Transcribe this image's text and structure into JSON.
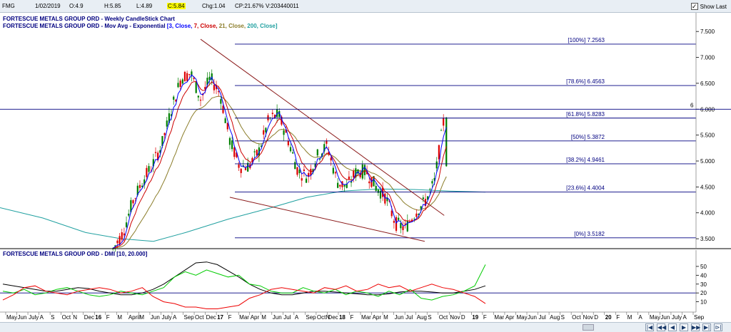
{
  "topbar": {
    "symbol": "FMG",
    "date": "1/02/2019",
    "open": "O:4.9",
    "high": "H:5.85",
    "low": "L:4.89",
    "close": "C:5.84",
    "change": "Chg:1.04",
    "change_pct": "CP:21.67%",
    "volume": "V:203440011",
    "show_last_label": "Show Last",
    "show_last_checked": true
  },
  "colors": {
    "fib_line": "#000080",
    "trend_line": "#8b1a1a",
    "ema3": "#0000ff",
    "ema7": "#cc0000",
    "ema21": "#8b7d2a",
    "ema200": "#20a0a0",
    "candle_up": "#008000",
    "candle_down": "#dd0000",
    "dmi_adx": "#000000",
    "dmi_plus": "#00cc00",
    "dmi_minus": "#ee0000",
    "dmi_threshold": "#000080"
  },
  "chart_data": [
    {
      "type": "line",
      "title": "FORTESCUE METALS GROUP ORD - Weekly CandleStick Chart",
      "subtitle_prefix": "FORTESCUE METALS GROUP ORD - Mov Avg - Exponential",
      "subtitle_parts": [
        {
          "text": "[3, Close, ",
          "color": "#0000ff"
        },
        {
          "text": "7, Close, ",
          "color": "#cc0000"
        },
        {
          "text": "21, Close, ",
          "color": "#8b7d2a"
        },
        {
          "text": "200, Close]",
          "color": "#20a0a0"
        }
      ],
      "y_ticks": [
        "7.500",
        "7.000",
        "6.500",
        "6.000",
        "5.500",
        "5.000",
        "4.500",
        "4.000",
        "3.500"
      ],
      "ylim": [
        3.35,
        7.75
      ],
      "current_price_marker": "6",
      "price_path": [
        [
          "2016-04",
          3.3
        ],
        [
          "2016-05",
          3.6
        ],
        [
          "2016-06",
          4.2
        ],
        [
          "2016-07",
          4.6
        ],
        [
          "2016-08",
          4.9
        ],
        [
          "2016-09",
          5.3
        ],
        [
          "2016-10",
          6.0
        ],
        [
          "2016-11",
          6.6
        ],
        [
          "2016-12",
          6.7
        ],
        [
          "2017-01",
          6.2
        ],
        [
          "2017-02",
          6.6
        ],
        [
          "2017-03",
          6.3
        ],
        [
          "2017-04",
          5.4
        ],
        [
          "2017-05",
          4.9
        ],
        [
          "2017-06",
          4.9
        ],
        [
          "2017-07",
          5.2
        ],
        [
          "2017-08",
          5.8
        ],
        [
          "2017-09",
          5.9
        ],
        [
          "2017-10",
          5.4
        ],
        [
          "2017-11",
          4.8
        ],
        [
          "2017-12",
          4.7
        ],
        [
          "2018-01",
          5.1
        ],
        [
          "2018-02",
          5.3
        ],
        [
          "2018-03",
          4.6
        ],
        [
          "2018-04",
          4.5
        ],
        [
          "2018-05",
          4.8
        ],
        [
          "2018-06",
          4.8
        ],
        [
          "2018-07",
          4.5
        ],
        [
          "2018-08",
          4.3
        ],
        [
          "2018-09",
          3.8
        ],
        [
          "2018-10",
          3.7
        ],
        [
          "2018-11",
          4.0
        ],
        [
          "2018-12",
          4.2
        ],
        [
          "2019-01",
          4.6
        ],
        [
          "2019-02",
          5.84
        ]
      ],
      "fib_levels": [
        {
          "label": "[100%] 7.2563",
          "value": 7.2563
        },
        {
          "label": "[78.6%] 6.4563",
          "value": 6.4563
        },
        {
          "label": "[61.8%] 5.8283",
          "value": 5.8283
        },
        {
          "label": "[50%] 5.3872",
          "value": 5.3872
        },
        {
          "label": "[38.2%] 4.9461",
          "value": 4.9461
        },
        {
          "label": "[23.6%] 4.4004",
          "value": 4.4004
        },
        {
          "label": "[0%] 3.5182",
          "value": 3.5182
        }
      ],
      "horizontal_line": 6.0,
      "trend_lines": [
        {
          "from": [
            "2017-01",
            7.35
          ],
          "to": [
            "2019-02",
            3.95
          ]
        },
        {
          "from": [
            "2017-04",
            4.3
          ],
          "to": [
            "2018-12",
            3.45
          ]
        }
      ]
    },
    {
      "type": "line",
      "title": "FORTESCUE METALS GROUP ORD - DMI [10, 20.000]",
      "y_ticks": [
        "50",
        "40",
        "30",
        "20",
        "10"
      ],
      "ylim": [
        0,
        58
      ],
      "threshold": 20,
      "adx_path": [
        30,
        28,
        26,
        24,
        22,
        22,
        24,
        26,
        25,
        22,
        20,
        18,
        18,
        20,
        24,
        30,
        38,
        46,
        54,
        55,
        52,
        45,
        38,
        30,
        24,
        20,
        18,
        18,
        20,
        22,
        22,
        21,
        20,
        19,
        18,
        18,
        19,
        21,
        22,
        22,
        21,
        20,
        20,
        22,
        24,
        28
      ],
      "di_plus_path": [
        22,
        20,
        24,
        18,
        20,
        24,
        26,
        22,
        18,
        16,
        18,
        22,
        20,
        18,
        22,
        26,
        38,
        44,
        40,
        46,
        42,
        38,
        40,
        30,
        28,
        22,
        20,
        20,
        26,
        22,
        20,
        24,
        18,
        22,
        20,
        16,
        22,
        18,
        24,
        14,
        12,
        16,
        18,
        22,
        28,
        52
      ],
      "di_minus_path": [
        12,
        18,
        26,
        28,
        22,
        20,
        18,
        22,
        24,
        26,
        24,
        20,
        22,
        26,
        16,
        10,
        8,
        4,
        4,
        2,
        2,
        4,
        6,
        14,
        18,
        24,
        26,
        24,
        22,
        20,
        26,
        24,
        28,
        22,
        24,
        30,
        26,
        28,
        22,
        26,
        30,
        26,
        24,
        20,
        16,
        8
      ]
    }
  ],
  "x_axis_labels": [
    "May",
    "Jun",
    "July",
    "A",
    "S",
    "Oct",
    "N",
    "Dec",
    "16",
    "F",
    "M",
    "April",
    "M",
    "Jun",
    "July",
    "A",
    "Sep",
    "Oct",
    "Dec",
    "17",
    "F",
    "Mar",
    "Apr",
    "M",
    "Jun",
    "Jul",
    "A",
    "Sep",
    "OctN",
    "Dec",
    "18",
    "F",
    "Mar",
    "Apr",
    "M",
    "Jun",
    "Jul",
    "Aug",
    "S",
    "Oct",
    "Nov",
    "D",
    "19",
    "F",
    "Mar",
    "Apr",
    "May",
    "Jun",
    "Jul",
    "Aug",
    "S",
    "Oct",
    "Nov",
    "D",
    "20",
    "F",
    "M",
    "A",
    "May",
    "Jun",
    "July",
    "A",
    "Sep"
  ],
  "x_axis_bold": [
    "16",
    "17",
    "18",
    "19",
    "20"
  ]
}
